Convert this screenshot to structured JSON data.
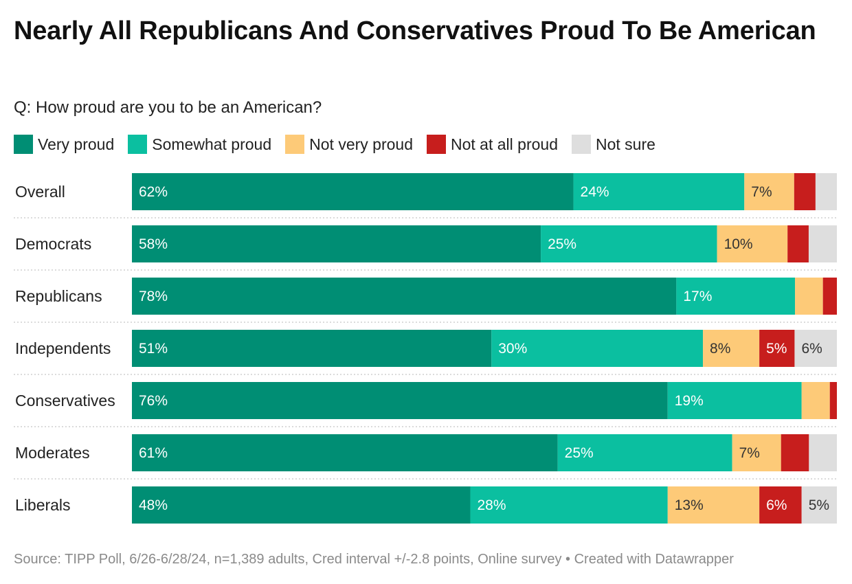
{
  "title": "Nearly All Republicans And Conservatives Proud To Be American",
  "subtitle": "Q: How proud are you to be an American?",
  "footer": "Source: TIPP Poll, 6/26-6/28/24, n=1,389 adults, Cred interval +/-2.8 points, Online survey • Created with Datawrapper",
  "chart_data": {
    "type": "bar",
    "orientation": "horizontal",
    "stacked": true,
    "title": "Nearly All Republicans And Conservatives Proud To Be American",
    "subtitle": "Q: How proud are you to be an American?",
    "categories": [
      "Overall",
      "Democrats",
      "Republicans",
      "Independents",
      "Conservatives",
      "Moderates",
      "Liberals"
    ],
    "series": [
      {
        "name": "Very proud",
        "color": "#008e74",
        "label_color": "#ffffff",
        "values": [
          62,
          58,
          78,
          51,
          76,
          61,
          48
        ],
        "labels": [
          "62%",
          "58%",
          "78%",
          "51%",
          "76%",
          "61%",
          "48%"
        ]
      },
      {
        "name": "Somewhat proud",
        "color": "#0bbfa0",
        "label_color": "#ffffff",
        "values": [
          24,
          25,
          17,
          30,
          19,
          25,
          28
        ],
        "labels": [
          "24%",
          "25%",
          "17%",
          "30%",
          "19%",
          "25%",
          "28%"
        ]
      },
      {
        "name": "Not very proud",
        "color": "#fdca78",
        "label_color": "#333333",
        "values": [
          7,
          10,
          4,
          8,
          4,
          7,
          13
        ],
        "labels": [
          "7%",
          "10%",
          "",
          "8%",
          "",
          "7%",
          "13%"
        ]
      },
      {
        "name": "Not at all proud",
        "color": "#c71e1d",
        "label_color": "#ffffff",
        "values": [
          3,
          3,
          2,
          5,
          1,
          4,
          6
        ],
        "labels": [
          "",
          "",
          "",
          "5%",
          "",
          "",
          "6%"
        ]
      },
      {
        "name": "Not sure",
        "color": "#dedede",
        "label_color": "#333333",
        "values": [
          3,
          4,
          0,
          6,
          0,
          4,
          5
        ],
        "labels": [
          "",
          "",
          "",
          "6%",
          "",
          "",
          "5%"
        ]
      }
    ],
    "xlim": [
      0,
      100
    ],
    "legend_position": "top-left",
    "grid": false
  }
}
